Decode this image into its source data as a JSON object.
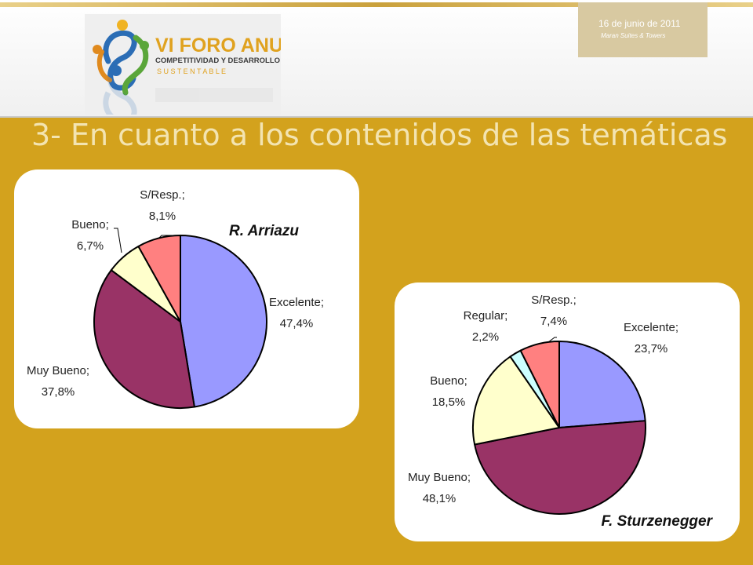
{
  "header": {
    "logo": {
      "line1": "VI FORO ANUAL",
      "line2": "COMPETITIVIDAD Y DESARROLLO",
      "line3": "S U S T E N T A B L E"
    },
    "date_badge": {
      "line1": "16 de junio de 2011",
      "line2": "Maran Suites & Towers"
    }
  },
  "slide_title": "3- En cuanto a los contenidos de las temáticas",
  "colors": {
    "background": "#d3a21d",
    "excelente": "#9999ff",
    "muy_bueno": "#993366",
    "bueno": "#ffffcc",
    "regular": "#ccffff",
    "s_resp": "#ff8080"
  },
  "chart_data": [
    {
      "type": "pie",
      "title": "R. Arriazu",
      "slices": [
        {
          "label": "Excelente",
          "value": 47.4,
          "text": "Excelente;",
          "value_text": "47,4%",
          "color": "#9999ff"
        },
        {
          "label": "Muy Bueno",
          "value": 37.8,
          "text": "Muy Bueno;",
          "value_text": "37,8%",
          "color": "#993366"
        },
        {
          "label": "Bueno",
          "value": 6.7,
          "text": "Bueno;",
          "value_text": "6,7%",
          "color": "#ffffcc"
        },
        {
          "label": "S/Resp.",
          "value": 8.1,
          "text": "S/Resp.;",
          "value_text": "8,1%",
          "color": "#ff8080"
        }
      ]
    },
    {
      "type": "pie",
      "title": "F. Sturzenegger",
      "slices": [
        {
          "label": "Excelente",
          "value": 23.7,
          "text": "Excelente;",
          "value_text": "23,7%",
          "color": "#9999ff"
        },
        {
          "label": "Muy Bueno",
          "value": 48.1,
          "text": "Muy Bueno;",
          "value_text": "48,1%",
          "color": "#993366"
        },
        {
          "label": "Bueno",
          "value": 18.5,
          "text": "Bueno;",
          "value_text": "18,5%",
          "color": "#ffffcc"
        },
        {
          "label": "Regular",
          "value": 2.2,
          "text": "Regular;",
          "value_text": "2,2%",
          "color": "#ccffff"
        },
        {
          "label": "S/Resp.",
          "value": 7.4,
          "text": "S/Resp.;",
          "value_text": "7,4%",
          "color": "#ff8080"
        }
      ]
    }
  ]
}
